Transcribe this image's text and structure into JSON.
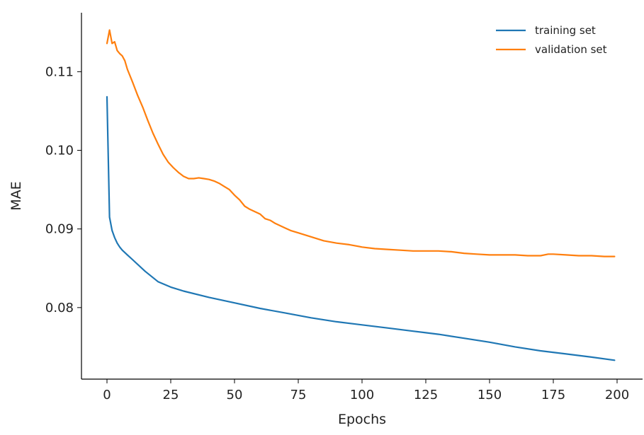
{
  "chart_data": {
    "type": "line",
    "title": "",
    "xlabel": "Epochs",
    "ylabel": "MAE",
    "xlim": [
      -10,
      210
    ],
    "ylim": [
      0.0709,
      0.1175
    ],
    "xticks": [
      0,
      25,
      50,
      75,
      100,
      125,
      150,
      175,
      200
    ],
    "xtick_labels": [
      "0",
      "25",
      "50",
      "75",
      "100",
      "125",
      "150",
      "175",
      "200"
    ],
    "yticks": [
      0.08,
      0.09,
      0.1,
      0.11
    ],
    "ytick_labels": [
      "0.08",
      "0.09",
      "0.10",
      "0.11"
    ],
    "grid": false,
    "legend_position": "top-right",
    "series": [
      {
        "name": "training set",
        "color": "#1f77b4",
        "x": [
          0,
          1,
          2,
          3,
          4,
          5,
          6,
          8,
          10,
          15,
          20,
          25,
          30,
          40,
          50,
          60,
          70,
          80,
          90,
          100,
          110,
          120,
          125,
          130,
          140,
          150,
          160,
          170,
          180,
          190,
          199
        ],
        "y": [
          0.1068,
          0.0915,
          0.0898,
          0.0889,
          0.0882,
          0.0877,
          0.0873,
          0.0867,
          0.0861,
          0.0846,
          0.0833,
          0.0826,
          0.0821,
          0.0813,
          0.0806,
          0.0799,
          0.0793,
          0.0787,
          0.0782,
          0.0778,
          0.0774,
          0.077,
          0.0768,
          0.0766,
          0.0761,
          0.0756,
          0.075,
          0.0745,
          0.0741,
          0.0737,
          0.0733
        ]
      },
      {
        "name": "validation set",
        "color": "#ff7f0e",
        "x": [
          0,
          1,
          2,
          3,
          4,
          5,
          6,
          7,
          8,
          10,
          12,
          14,
          16,
          18,
          20,
          22,
          24,
          26,
          28,
          30,
          32,
          34,
          36,
          38,
          40,
          42,
          44,
          46,
          48,
          50,
          52,
          54,
          56,
          58,
          60,
          62,
          64,
          66,
          68,
          70,
          72,
          75,
          80,
          85,
          90,
          95,
          100,
          105,
          110,
          115,
          120,
          125,
          130,
          135,
          140,
          145,
          150,
          155,
          160,
          165,
          170,
          173,
          175,
          180,
          185,
          190,
          195,
          199
        ],
        "y": [
          0.1136,
          0.1153,
          0.1136,
          0.1138,
          0.1127,
          0.1123,
          0.112,
          0.1114,
          0.1103,
          0.1087,
          0.107,
          0.1055,
          0.1038,
          0.1022,
          0.1008,
          0.0995,
          0.0985,
          0.0978,
          0.0972,
          0.0967,
          0.0964,
          0.0964,
          0.0965,
          0.0964,
          0.0963,
          0.0961,
          0.0958,
          0.0954,
          0.095,
          0.0943,
          0.0937,
          0.0929,
          0.0925,
          0.0922,
          0.0919,
          0.0913,
          0.0911,
          0.0907,
          0.0904,
          0.0901,
          0.0898,
          0.0895,
          0.089,
          0.0885,
          0.0882,
          0.088,
          0.0877,
          0.0875,
          0.0874,
          0.0873,
          0.0872,
          0.0872,
          0.0872,
          0.0871,
          0.0869,
          0.0868,
          0.0867,
          0.0867,
          0.0867,
          0.0866,
          0.0866,
          0.0868,
          0.0868,
          0.0867,
          0.0866,
          0.0866,
          0.0865,
          0.0865
        ]
      }
    ]
  }
}
